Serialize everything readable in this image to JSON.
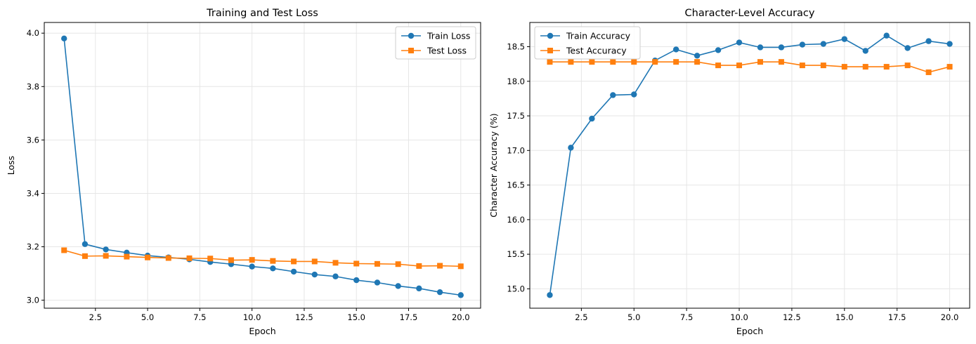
{
  "colors": {
    "series1": "#1f77b4",
    "series2": "#ff7f0e",
    "grid": "#e6e6e6",
    "axis": "#000000"
  },
  "chart_data": [
    {
      "type": "line",
      "title": "Training and Test Loss",
      "xlabel": "Epoch",
      "ylabel": "Loss",
      "xlim": [
        0.05,
        20.95
      ],
      "ylim": [
        2.97,
        4.04
      ],
      "xticks": [
        2.5,
        5.0,
        7.5,
        10.0,
        12.5,
        15.0,
        17.5,
        20.0
      ],
      "xtick_labels": [
        "2.5",
        "5.0",
        "7.5",
        "10.0",
        "12.5",
        "15.0",
        "17.5",
        "20.0"
      ],
      "yticks": [
        3.0,
        3.2,
        3.4,
        3.6,
        3.8,
        4.0
      ],
      "ytick_labels": [
        "3.0",
        "3.2",
        "3.4",
        "3.6",
        "3.8",
        "4.0"
      ],
      "grid": true,
      "legend_position": "top-right",
      "x": [
        1,
        2,
        3,
        4,
        5,
        6,
        7,
        8,
        9,
        10,
        11,
        12,
        13,
        14,
        15,
        16,
        17,
        18,
        19,
        20
      ],
      "series": [
        {
          "name": "Train Loss",
          "marker": "circle",
          "color": "#1f77b4",
          "values": [
            3.98,
            3.21,
            3.19,
            3.178,
            3.167,
            3.16,
            3.153,
            3.143,
            3.135,
            3.126,
            3.119,
            3.107,
            3.096,
            3.089,
            3.075,
            3.066,
            3.053,
            3.044,
            3.03,
            3.019
          ]
        },
        {
          "name": "Test Loss",
          "marker": "square",
          "color": "#ff7f0e",
          "values": [
            3.187,
            3.165,
            3.166,
            3.163,
            3.16,
            3.158,
            3.157,
            3.156,
            3.15,
            3.151,
            3.147,
            3.145,
            3.145,
            3.14,
            3.137,
            3.136,
            3.135,
            3.128,
            3.129,
            3.127
          ]
        }
      ]
    },
    {
      "type": "line",
      "title": "Character-Level Accuracy",
      "xlabel": "Epoch",
      "ylabel": "Character Accuracy (%)",
      "xlim": [
        0.05,
        20.95
      ],
      "ylim": [
        14.72,
        18.85
      ],
      "xticks": [
        2.5,
        5.0,
        7.5,
        10.0,
        12.5,
        15.0,
        17.5,
        20.0
      ],
      "xtick_labels": [
        "2.5",
        "5.0",
        "7.5",
        "10.0",
        "12.5",
        "15.0",
        "17.5",
        "20.0"
      ],
      "yticks": [
        15.0,
        15.5,
        16.0,
        16.5,
        17.0,
        17.5,
        18.0,
        18.5
      ],
      "ytick_labels": [
        "15.0",
        "15.5",
        "16.0",
        "16.5",
        "17.0",
        "17.5",
        "18.0",
        "18.5"
      ],
      "grid": true,
      "legend_position": "top-left",
      "x": [
        1,
        2,
        3,
        4,
        5,
        6,
        7,
        8,
        9,
        10,
        11,
        12,
        13,
        14,
        15,
        16,
        17,
        18,
        19,
        20
      ],
      "series": [
        {
          "name": "Train Accuracy",
          "marker": "circle",
          "color": "#1f77b4",
          "values": [
            14.91,
            17.04,
            17.46,
            17.8,
            17.81,
            18.3,
            18.46,
            18.37,
            18.45,
            18.56,
            18.49,
            18.49,
            18.53,
            18.54,
            18.61,
            18.44,
            18.66,
            18.48,
            18.58,
            18.54
          ]
        },
        {
          "name": "Test Accuracy",
          "marker": "square",
          "color": "#ff7f0e",
          "values": [
            18.28,
            18.28,
            18.28,
            18.28,
            18.28,
            18.28,
            18.28,
            18.28,
            18.23,
            18.23,
            18.28,
            18.28,
            18.23,
            18.23,
            18.21,
            18.21,
            18.21,
            18.23,
            18.13,
            18.21
          ]
        }
      ]
    }
  ]
}
